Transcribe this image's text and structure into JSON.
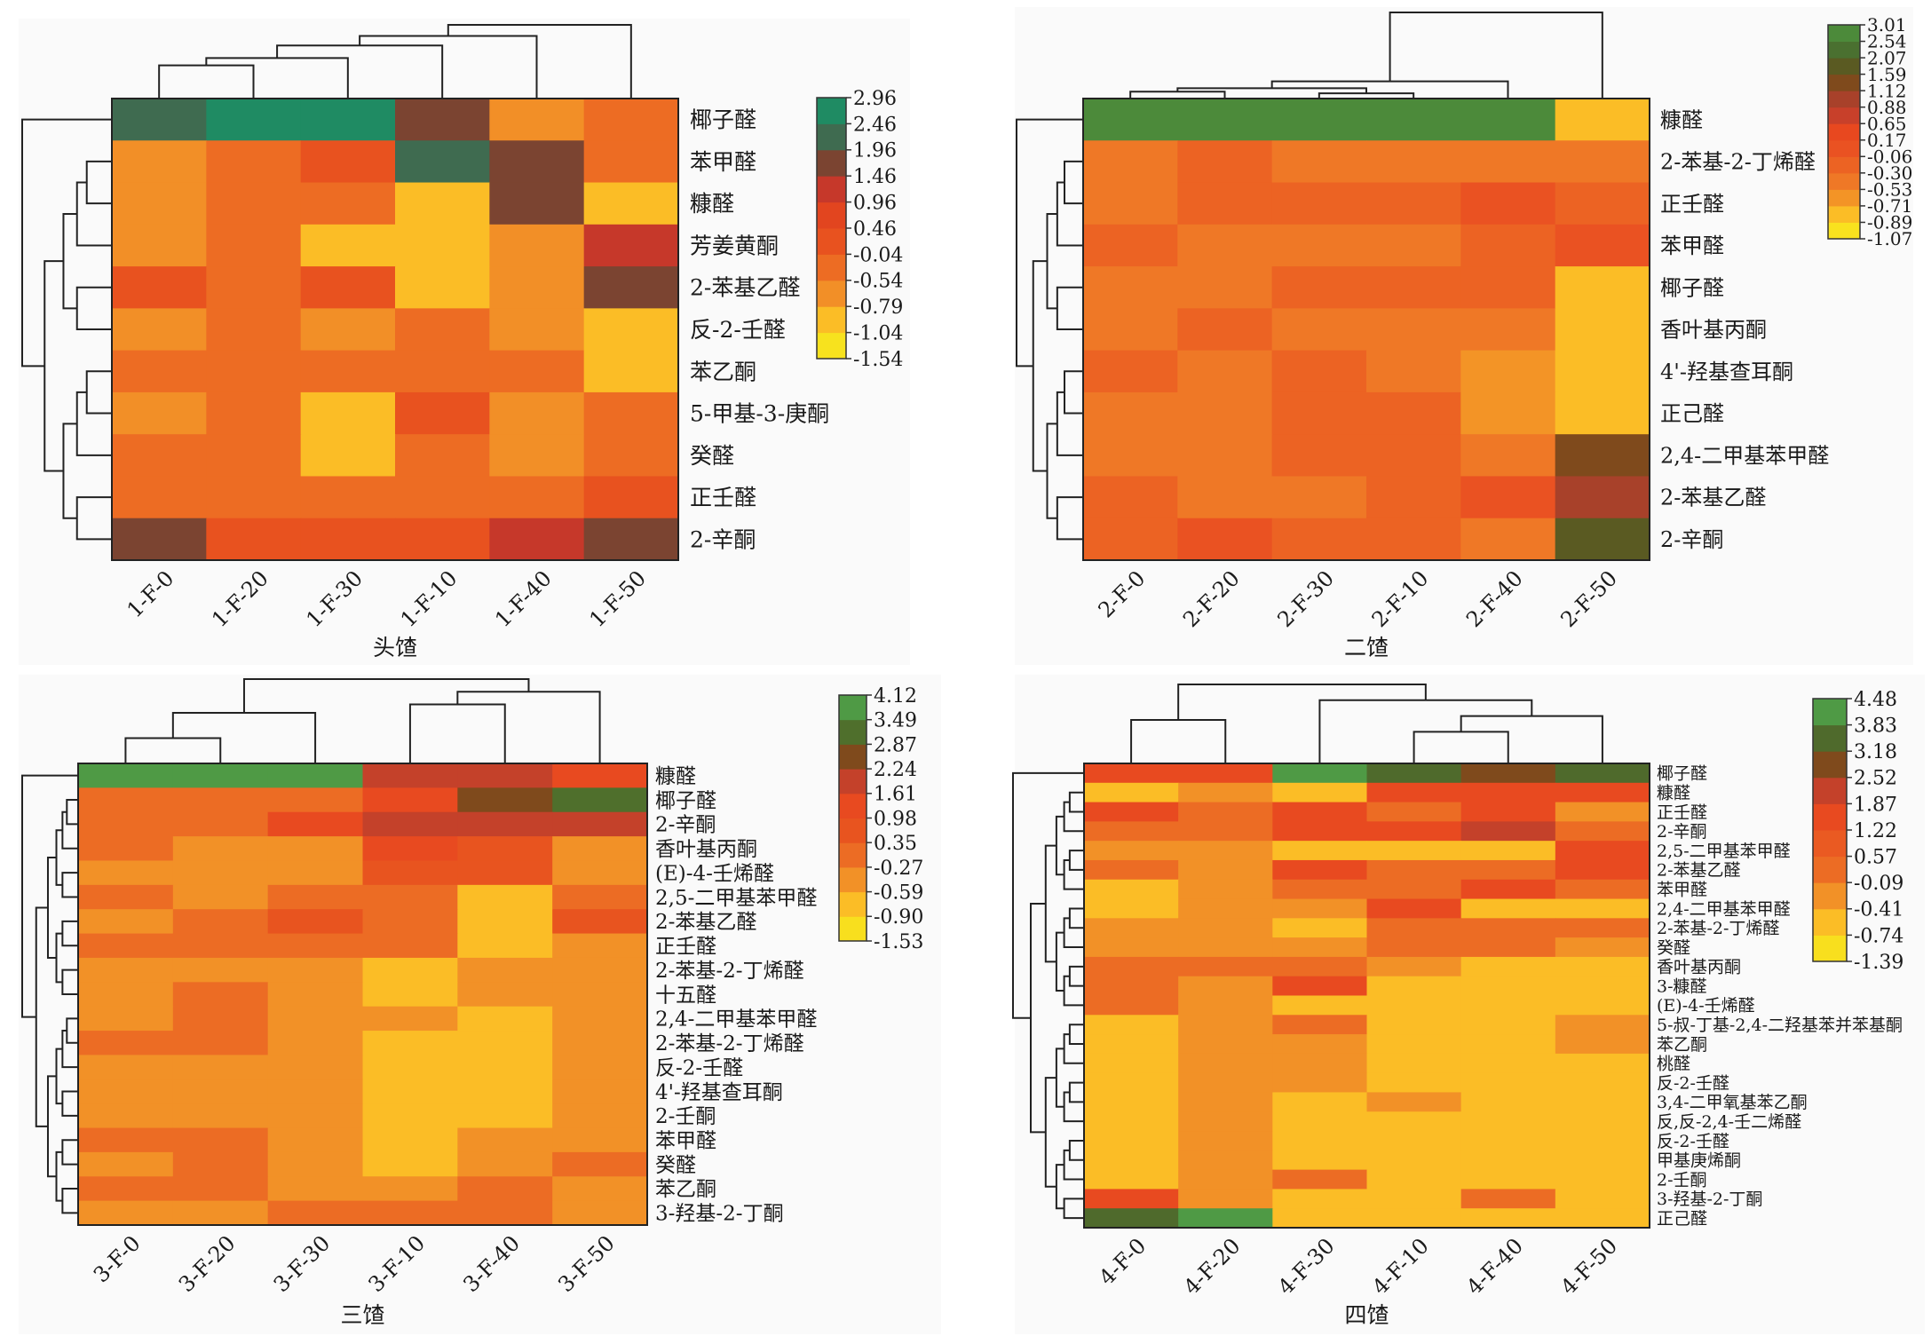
{
  "chart_data": [
    {
      "type": "heatmap",
      "title": "头馇",
      "xlabel": "头馇",
      "columns": [
        "1-F-0",
        "1-F-20",
        "1-F-30",
        "1-F-10",
        "1-F-40",
        "1-F-50"
      ],
      "rows": [
        "椰子醛",
        "苯甲醛",
        "糠醛",
        "芳姜黄酮",
        "2-苯基乙醛",
        "反-2-壬醛",
        "苯乙酮",
        "5-甲基-3-庚酮",
        "癸醛",
        "正壬醛",
        "2-辛酮"
      ],
      "values": [
        [
          2.2,
          2.7,
          2.7,
          1.7,
          -0.65,
          -0.3
        ],
        [
          -0.65,
          -0.3,
          0.2,
          2.2,
          1.7,
          -0.3
        ],
        [
          -0.65,
          -0.3,
          -0.3,
          -0.9,
          1.7,
          -0.9
        ],
        [
          -0.65,
          -0.3,
          -0.9,
          -0.9,
          -0.65,
          1.2
        ],
        [
          0.2,
          -0.3,
          0.2,
          -0.9,
          -0.65,
          1.7
        ],
        [
          -0.65,
          -0.3,
          -0.65,
          -0.3,
          -0.65,
          -0.9
        ],
        [
          -0.3,
          -0.3,
          -0.3,
          -0.3,
          -0.3,
          -0.9
        ],
        [
          -0.65,
          -0.3,
          -0.9,
          0.2,
          -0.65,
          -0.3
        ],
        [
          -0.3,
          -0.3,
          -0.9,
          -0.3,
          -0.65,
          -0.3
        ],
        [
          -0.3,
          -0.3,
          -0.3,
          -0.3,
          -0.3,
          0.2
        ],
        [
          1.7,
          0.2,
          0.2,
          0.2,
          1.2,
          1.7
        ]
      ],
      "colorbar": {
        "ticks": [
          "2.96",
          "2.46",
          "1.96",
          "1.46",
          "0.96",
          "0.46",
          "-0.04",
          "-0.54",
          "-0.79",
          "-1.04",
          "-1.54"
        ],
        "colors": [
          "#f7e21e",
          "#fbbd26",
          "#f28f27",
          "#ed6c23",
          "#e8521f",
          "#e2451f",
          "#c6382a",
          "#7b4431",
          "#3f6b50",
          "#1f8b63"
        ]
      }
    },
    {
      "type": "heatmap",
      "title": "二馇",
      "xlabel": "二馇",
      "columns": [
        "2-F-0",
        "2-F-20",
        "2-F-30",
        "2-F-10",
        "2-F-40",
        "2-F-50"
      ],
      "rows": [
        "糠醛",
        "2-苯基-2-丁烯醛",
        "正壬醛",
        "苯甲醛",
        "椰子醛",
        "香叶基丙酮",
        "4'-羟基查耳酮",
        "正己醛",
        "2,4-二甲基苯甲醛",
        "2-苯基乙醛",
        "2-辛酮"
      ],
      "values": [
        [
          2.8,
          2.8,
          2.8,
          2.8,
          2.8,
          -0.8
        ],
        [
          -0.4,
          -0.2,
          -0.4,
          -0.4,
          -0.4,
          -0.4
        ],
        [
          -0.4,
          -0.2,
          -0.2,
          -0.2,
          0.05,
          -0.2
        ],
        [
          -0.2,
          -0.4,
          -0.4,
          -0.4,
          -0.2,
          0.05
        ],
        [
          -0.4,
          -0.4,
          -0.2,
          -0.2,
          -0.2,
          -0.8
        ],
        [
          -0.4,
          -0.2,
          -0.4,
          -0.4,
          -0.4,
          -0.8
        ],
        [
          -0.2,
          -0.4,
          -0.2,
          -0.4,
          -0.6,
          -0.8
        ],
        [
          -0.4,
          -0.4,
          -0.2,
          -0.2,
          -0.6,
          -0.8
        ],
        [
          -0.4,
          -0.4,
          -0.2,
          -0.2,
          -0.4,
          1.3
        ],
        [
          -0.2,
          -0.4,
          -0.4,
          -0.2,
          0.05,
          1.0
        ],
        [
          -0.2,
          0.05,
          -0.2,
          -0.2,
          -0.4,
          1.8
        ]
      ],
      "colorbar": {
        "ticks": [
          "3.01",
          "2.54",
          "2.07",
          "1.59",
          "1.12",
          "0.88",
          "0.65",
          "0.17",
          "-0.06",
          "-0.30",
          "-0.53",
          "-0.71",
          "-0.89",
          "-1.07"
        ],
        "colors": [
          "#f9e21e",
          "#fbbd26",
          "#f39426",
          "#ef7826",
          "#ec6323",
          "#ea5222",
          "#e8481f",
          "#c8402a",
          "#a8412a",
          "#7f4a1c",
          "#5a5a22",
          "#4a7030",
          "#4c8a3a"
        ]
      }
    },
    {
      "type": "heatmap",
      "title": "三馇",
      "xlabel": "三馇",
      "columns": [
        "3-F-0",
        "3-F-20",
        "3-F-30",
        "3-F-10",
        "3-F-40",
        "3-F-50"
      ],
      "rows": [
        "糠醛",
        "椰子醛",
        "2-辛酮",
        "香叶基丙酮",
        "(E)-4-壬烯醛",
        "2,5-二甲基苯甲醛",
        "2-苯基乙醛",
        "正壬醛",
        "2-苯基-2-丁烯醛",
        "十五醛",
        "2,4-二甲基苯甲醛",
        "2-苯基-2-丁烯醛",
        "反-2-壬醛",
        "4'-羟基查耳酮",
        "2-壬酮",
        "苯甲醛",
        "癸醛",
        "苯乙酮",
        "3-羟基-2-丁酮"
      ],
      "values": [
        [
          3.8,
          3.8,
          3.8,
          1.9,
          1.9,
          1.2
        ],
        [
          0,
          0,
          0,
          1.2,
          2.5,
          3.2
        ],
        [
          0,
          0,
          1.2,
          1.9,
          1.9,
          1.9
        ],
        [
          0,
          -0.4,
          -0.4,
          1.2,
          0.6,
          -0.4
        ],
        [
          -0.4,
          -0.4,
          -0.4,
          0.6,
          0.6,
          -0.4
        ],
        [
          0,
          -0.4,
          0,
          0,
          -0.75,
          0
        ],
        [
          -0.4,
          0,
          0.6,
          0,
          -0.75,
          0.6
        ],
        [
          0,
          0,
          0,
          0,
          -0.75,
          -0.4
        ],
        [
          -0.4,
          -0.4,
          -0.4,
          -0.75,
          -0.4,
          -0.4
        ],
        [
          -0.4,
          0,
          -0.4,
          -0.75,
          -0.4,
          -0.4
        ],
        [
          -0.4,
          0,
          -0.4,
          -0.4,
          -0.75,
          -0.4
        ],
        [
          0,
          0,
          -0.4,
          -0.75,
          -0.75,
          -0.4
        ],
        [
          -0.4,
          -0.4,
          -0.4,
          -0.75,
          -0.75,
          -0.4
        ],
        [
          -0.4,
          -0.4,
          -0.4,
          -0.75,
          -0.75,
          -0.4
        ],
        [
          -0.4,
          -0.4,
          -0.4,
          -0.75,
          -0.75,
          -0.4
        ],
        [
          0,
          0,
          -0.4,
          -0.75,
          -0.4,
          -0.4
        ],
        [
          -0.4,
          0,
          -0.4,
          -0.75,
          -0.4,
          0
        ],
        [
          0,
          0,
          -0.4,
          -0.4,
          0,
          -0.4
        ],
        [
          -0.4,
          -0.4,
          0,
          0,
          0,
          -0.4
        ]
      ],
      "colorbar": {
        "ticks": [
          "4.12",
          "3.49",
          "2.87",
          "2.24",
          "1.61",
          "0.98",
          "0.35",
          "-0.27",
          "-0.59",
          "-0.90",
          "-1.53"
        ],
        "colors": [
          "#f8df1e",
          "#fbbd26",
          "#f29127",
          "#ec6c24",
          "#e8541f",
          "#e84a20",
          "#c4412a",
          "#7f4a1c",
          "#4f6f2c",
          "#4f9a45"
        ]
      }
    },
    {
      "type": "heatmap",
      "title": "四馇",
      "xlabel": "四馇",
      "columns": [
        "4-F-0",
        "4-F-20",
        "4-F-30",
        "4-F-10",
        "4-F-40",
        "4-F-50"
      ],
      "rows": [
        "椰子醛",
        "糠醛",
        "正壬醛",
        "2-辛酮",
        "2,5-二甲基苯甲醛",
        "2-苯基乙醛",
        "苯甲醛",
        "2,4-二甲基苯甲醛",
        "2-苯基-2-丁烯醛",
        "癸醛",
        "香叶基丙酮",
        "3-糠醛",
        "(E)-4-壬烯醛",
        "5-叔-丁基-2,4-二羟基苯并苯基酮",
        "苯乙酮",
        "桃醛",
        "反-2-壬醛",
        "3,4-二甲氧基苯乙酮",
        "反,反-2,4-壬二烯醛",
        "反-2-壬醛",
        "甲基庚烯酮",
        "2-壬酮",
        "3-羟基-2-丁酮",
        "正己醛"
      ],
      "values": [
        [
          1.5,
          1.5,
          4.1,
          3.5,
          2.8,
          3.5
        ],
        [
          -0.6,
          -0.25,
          -0.6,
          1.5,
          1.5,
          1.5
        ],
        [
          1.5,
          0.2,
          1.5,
          0.2,
          1.5,
          -0.25
        ],
        [
          0.2,
          0.2,
          1.5,
          1.5,
          2.2,
          0.2
        ],
        [
          -0.25,
          -0.25,
          -0.6,
          -0.6,
          -0.6,
          1.5
        ],
        [
          0.2,
          -0.25,
          1.5,
          0.2,
          0.2,
          1.5
        ],
        [
          -0.6,
          -0.25,
          0.2,
          0.2,
          1.5,
          0.2
        ],
        [
          -0.6,
          -0.25,
          -0.25,
          1.5,
          -0.6,
          -0.6
        ],
        [
          -0.25,
          -0.25,
          -0.6,
          0.2,
          0.2,
          0.2
        ],
        [
          -0.25,
          -0.25,
          -0.25,
          0.2,
          0.2,
          -0.25
        ],
        [
          0.2,
          0.2,
          0.2,
          -0.25,
          -0.6,
          -0.6
        ],
        [
          0.2,
          -0.25,
          1.5,
          -0.6,
          -0.6,
          -0.6
        ],
        [
          0.2,
          -0.25,
          -0.6,
          -0.6,
          -0.6,
          -0.6
        ],
        [
          -0.6,
          -0.25,
          0.2,
          -0.6,
          -0.6,
          -0.25
        ],
        [
          -0.6,
          -0.25,
          -0.25,
          -0.6,
          -0.6,
          -0.25
        ],
        [
          -0.6,
          -0.25,
          -0.25,
          -0.6,
          -0.6,
          -0.6
        ],
        [
          -0.6,
          -0.25,
          -0.25,
          -0.6,
          -0.6,
          -0.6
        ],
        [
          -0.6,
          -0.25,
          -0.6,
          -0.25,
          -0.6,
          -0.6
        ],
        [
          -0.6,
          -0.25,
          -0.6,
          -0.6,
          -0.6,
          -0.6
        ],
        [
          -0.6,
          -0.25,
          -0.6,
          -0.6,
          -0.6,
          -0.6
        ],
        [
          -0.6,
          -0.25,
          -0.6,
          -0.6,
          -0.6,
          -0.6
        ],
        [
          -0.6,
          -0.25,
          0.2,
          -0.6,
          -0.6,
          -0.6
        ],
        [
          1.5,
          -0.25,
          -0.6,
          -0.6,
          0.2,
          -0.6
        ],
        [
          3.5,
          4.1,
          -0.6,
          -0.6,
          -0.6,
          -0.6
        ]
      ],
      "colorbar": {
        "ticks": [
          "4.48",
          "3.83",
          "3.18",
          "2.52",
          "1.87",
          "1.22",
          "0.57",
          "-0.09",
          "-0.41",
          "-0.74",
          "-1.39"
        ],
        "colors": [
          "#f8df1e",
          "#fbbd26",
          "#f29127",
          "#ec6c24",
          "#ea5a22",
          "#e84a20",
          "#c4412a",
          "#7f4a1c",
          "#4f6a2c",
          "#4f9a45"
        ]
      }
    }
  ]
}
